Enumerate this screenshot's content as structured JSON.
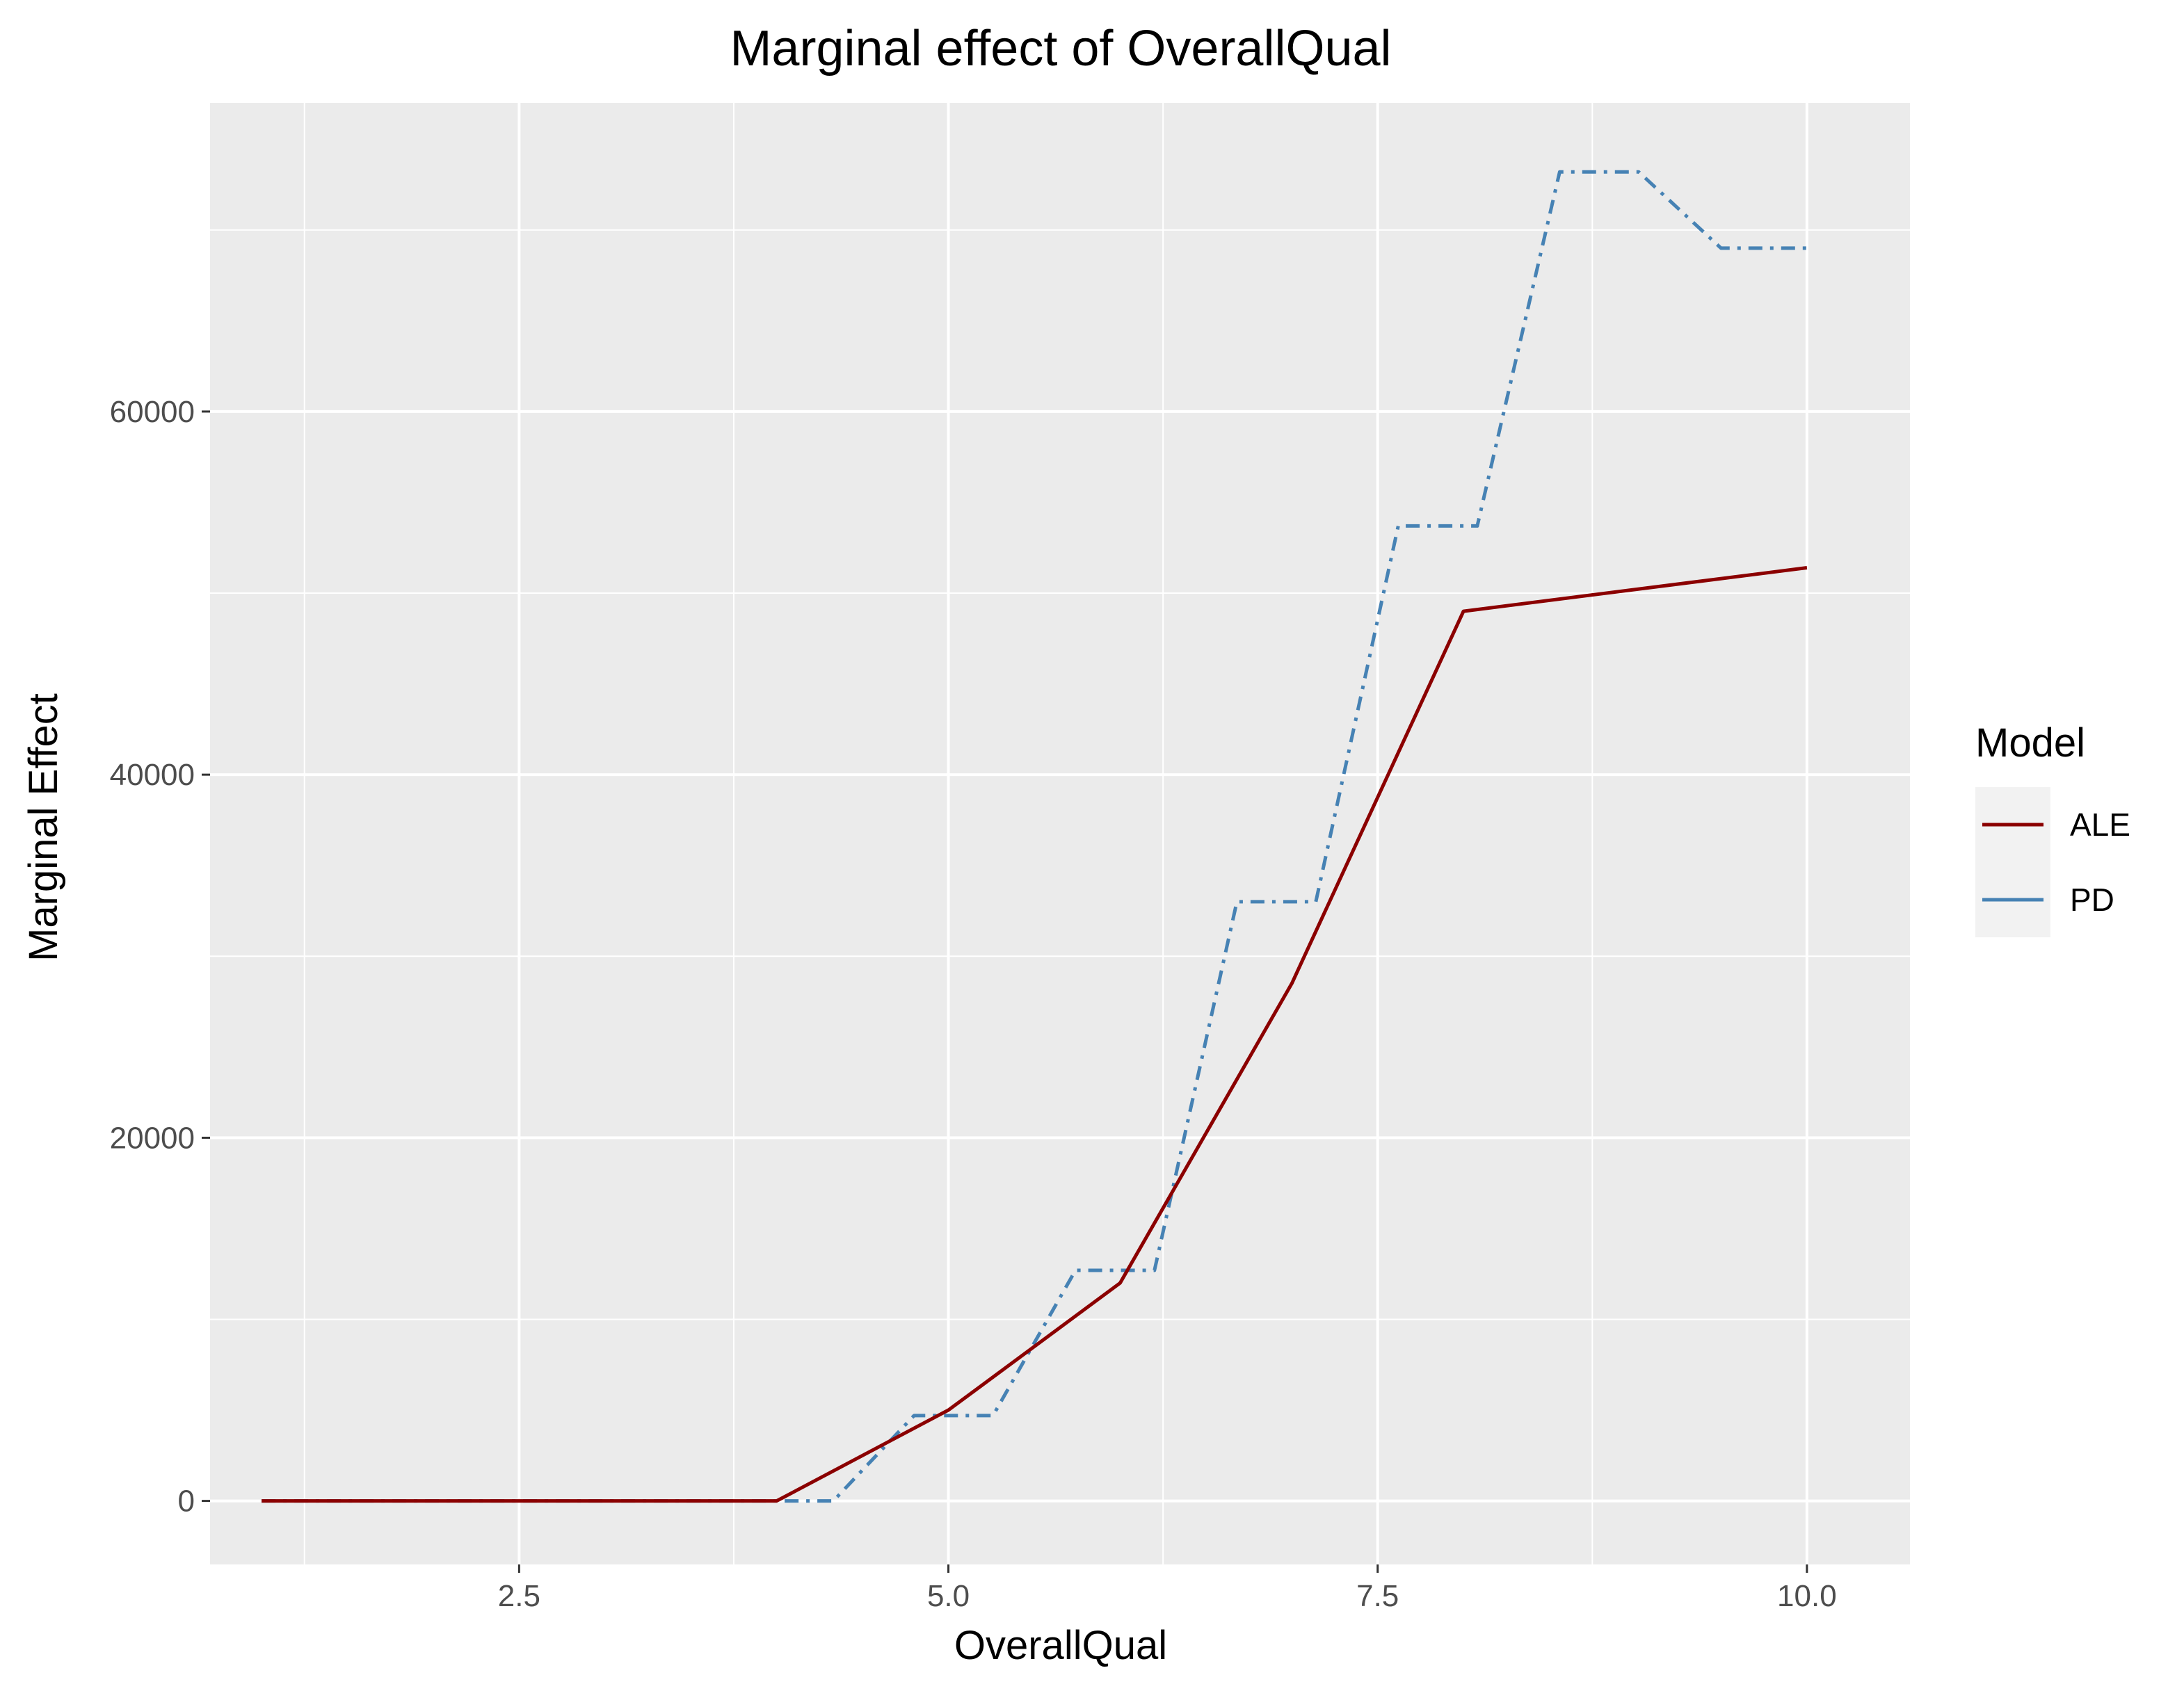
{
  "chart_data": {
    "type": "line",
    "title": "Marginal effect of OverallQual",
    "xlabel": "OverallQual",
    "ylabel": "Marginal Effect",
    "xlim": [
      0.7,
      10.6
    ],
    "ylim": [
      -3500,
      77000
    ],
    "x_ticks": [
      {
        "value": 2.5,
        "label": "2.5"
      },
      {
        "value": 5.0,
        "label": "5.0"
      },
      {
        "value": 7.5,
        "label": "7.5"
      },
      {
        "value": 10.0,
        "label": "10.0"
      }
    ],
    "x_minor_ticks": [
      1.25,
      3.75,
      6.25,
      8.75
    ],
    "y_ticks": [
      {
        "value": 0,
        "label": "0"
      },
      {
        "value": 20000,
        "label": "20000"
      },
      {
        "value": 40000,
        "label": "40000"
      },
      {
        "value": 60000,
        "label": "60000"
      }
    ],
    "y_minor_ticks": [
      10000,
      30000,
      50000,
      70000
    ],
    "grid": true,
    "legend": {
      "title": "Model",
      "position": "right"
    },
    "series": [
      {
        "name": "ALE",
        "color": "#8b0000",
        "linestyle": "solid",
        "points": [
          {
            "x": 1.0,
            "y": 0
          },
          {
            "x": 4.0,
            "y": 0
          },
          {
            "x": 5.0,
            "y": 5000
          },
          {
            "x": 6.0,
            "y": 12000
          },
          {
            "x": 7.0,
            "y": 28500
          },
          {
            "x": 8.0,
            "y": 49000
          },
          {
            "x": 10.0,
            "y": 51400
          }
        ]
      },
      {
        "name": "PD",
        "color": "#4682b4",
        "linestyle": "dashdot",
        "points": [
          {
            "x": 1.0,
            "y": 0
          },
          {
            "x": 4.33,
            "y": 0
          },
          {
            "x": 4.8,
            "y": 4700
          },
          {
            "x": 5.26,
            "y": 4700
          },
          {
            "x": 5.74,
            "y": 12700
          },
          {
            "x": 6.2,
            "y": 12700
          },
          {
            "x": 6.68,
            "y": 33000
          },
          {
            "x": 7.14,
            "y": 33000
          },
          {
            "x": 7.62,
            "y": 53700
          },
          {
            "x": 8.08,
            "y": 53700
          },
          {
            "x": 8.56,
            "y": 73200
          },
          {
            "x": 9.02,
            "y": 73200
          },
          {
            "x": 9.5,
            "y": 69000
          },
          {
            "x": 10.0,
            "y": 69000
          }
        ]
      }
    ]
  }
}
